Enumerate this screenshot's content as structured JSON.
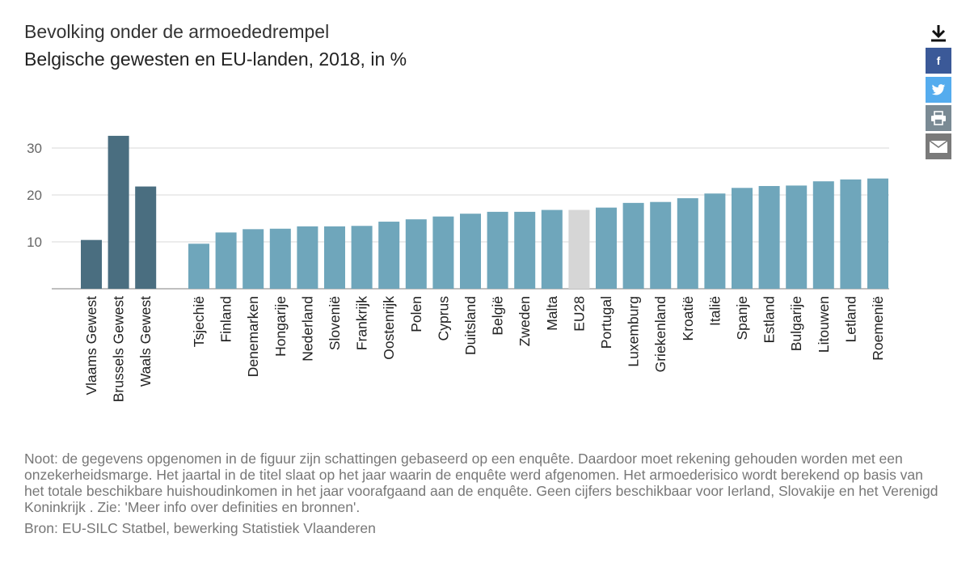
{
  "header": {
    "title": "Bevolking onder de armoededrempel",
    "subtitle": "Belgische gewesten en EU-landen, 2018, in %"
  },
  "share": {
    "download_icon": "download-arrow-icon",
    "facebook_icon": "facebook-icon",
    "twitter_icon": "twitter-bird-icon",
    "print_icon": "printer-icon",
    "mail_icon": "envelope-icon",
    "facebook_label": "f"
  },
  "colors": {
    "region_bar": "#4a6e80",
    "country_bar": "#6fa6bb",
    "eu_bar": "#d6d6d6",
    "facebook": "#3b5998",
    "twitter": "#55acee",
    "print": "#7a8a94",
    "mail": "#7a7a7a"
  },
  "chart_data": {
    "type": "bar",
    "title": "Bevolking onder de armoededrempel",
    "subtitle": "Belgische gewesten en EU-landen, 2018, in %",
    "xlabel": "",
    "ylabel": "",
    "ylim": [
      0,
      33
    ],
    "yticks": [
      10,
      20,
      30
    ],
    "grid": true,
    "groups": [
      {
        "name": "Belgische gewesten",
        "categories": [
          "Vlaams Gewest",
          "Brussels Gewest",
          "Waals Gewest"
        ],
        "values": [
          10.4,
          32.6,
          21.8
        ]
      },
      {
        "name": "EU-landen",
        "categories": [
          "Tsjechië",
          "Finland",
          "Denemarken",
          "Hongarije",
          "Nederland",
          "Slovenië",
          "Frankrijk",
          "Oostenrijk",
          "Polen",
          "Cyprus",
          "Duitsland",
          "België",
          "Zweden",
          "Malta",
          "EU28",
          "Portugal",
          "Luxemburg",
          "Griekenland",
          "Kroatië",
          "Italië",
          "Spanje",
          "Estland",
          "Bulgarije",
          "Litouwen",
          "Letland",
          "Roemenië"
        ],
        "values": [
          9.6,
          12.0,
          12.7,
          12.8,
          13.3,
          13.3,
          13.4,
          14.3,
          14.8,
          15.4,
          16.0,
          16.4,
          16.4,
          16.8,
          16.8,
          17.3,
          18.3,
          18.5,
          19.3,
          20.3,
          21.5,
          21.9,
          22.0,
          22.9,
          23.3,
          23.5
        ]
      }
    ],
    "highlight": "EU28"
  },
  "footer": {
    "note": "Noot: de gegevens opgenomen in de figuur zijn schattingen gebaseerd op een enquête. Daardoor moet rekening gehouden worden met een onzekerheidsmarge. Het jaartal in de titel slaat op het jaar waarin de enquête werd afgenomen. Het armoederisico wordt berekend op basis van het totale beschikbare huishoudinkomen in het jaar voorafgaand aan de enquête. Geen cijfers beschikbaar voor Ierland, Slovakije en het Verenigd Koninkrijk . Zie: 'Meer info over definities en bronnen'.",
    "source": "Bron: EU-SILC Statbel, bewerking Statistiek Vlaanderen"
  }
}
